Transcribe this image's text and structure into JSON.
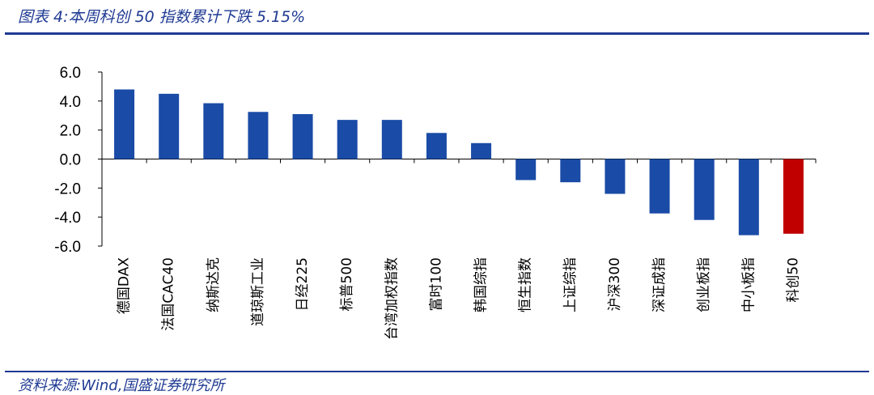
{
  "header": {
    "title": "图表 4:本周科创 50 指数累计下跌 5.15%"
  },
  "footer": {
    "source": "资料来源:Wind,国盛证券研究所"
  },
  "colors": {
    "bar": "#1a4ba6",
    "highlight": "#c00000",
    "rule": "#1f3a93"
  },
  "chart_data": {
    "type": "bar",
    "title": "本周科创 50 指数累计下跌 5.15%",
    "xlabel": "",
    "ylabel": "",
    "ylim": [
      -6.0,
      6.0
    ],
    "yticks": [
      "6.0",
      "4.0",
      "2.0",
      "0.0",
      "-2.0",
      "-4.0",
      "-6.0"
    ],
    "grid": false,
    "categories": [
      "德国DAX",
      "法国CAC40",
      "纳斯达克",
      "道琼斯工业",
      "日经225",
      "标普500",
      "台湾加权指数",
      "富时100",
      "韩国综指",
      "恒生指数",
      "上证综指",
      "沪深300",
      "深证成指",
      "创业板指",
      "中小板指",
      "科创50"
    ],
    "values": [
      4.8,
      4.5,
      3.85,
      3.25,
      3.1,
      2.7,
      2.7,
      1.8,
      1.1,
      -1.45,
      -1.6,
      -2.4,
      -3.75,
      -4.2,
      -5.25,
      -5.15
    ],
    "highlight_index": 15
  }
}
